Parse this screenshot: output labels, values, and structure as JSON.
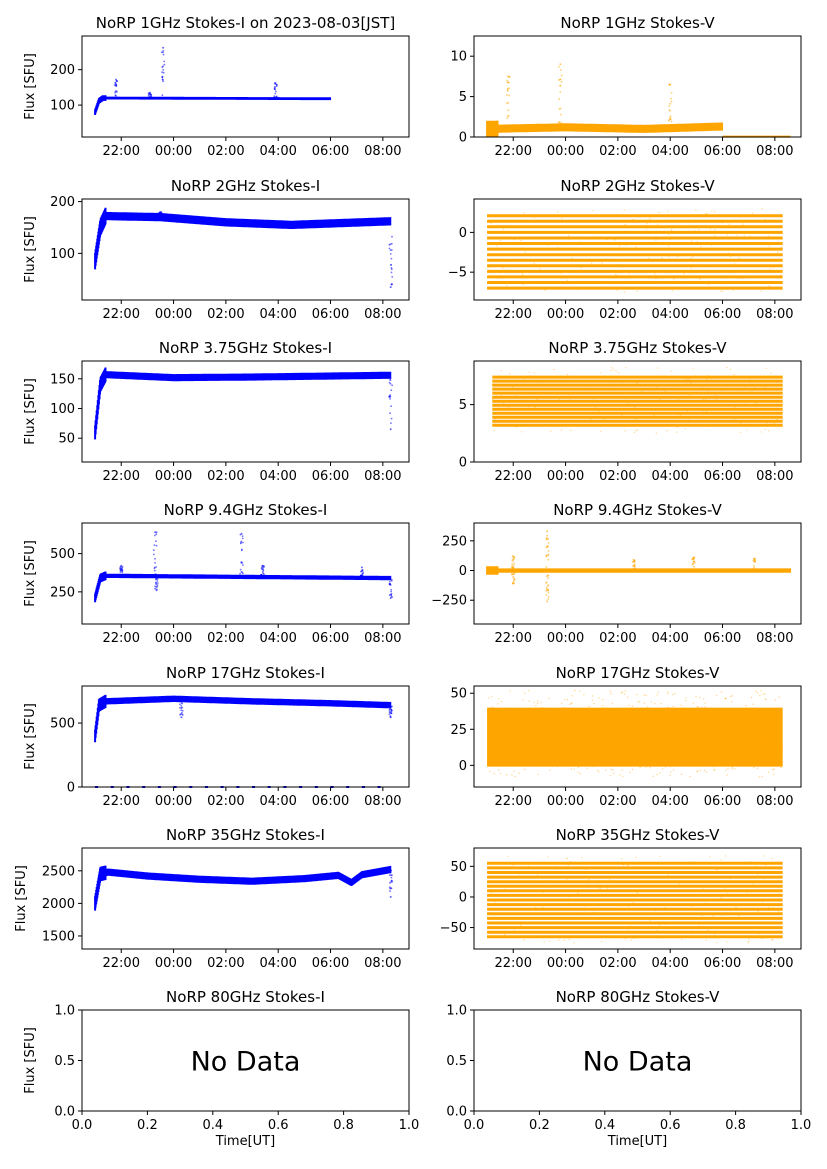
{
  "figure": {
    "xlabel": "Time[UT]",
    "ylabel": "Flux [SFU]",
    "no_data_text": "No Data"
  },
  "colors": {
    "stokes_i": "#0000ff",
    "stokes_v": "#ffa500"
  },
  "chart_data": [
    {
      "id": "i1",
      "type": "scatter",
      "title": "NoRP 1GHz Stokes-I on 2023-08-03[JST]",
      "ylabel": "Flux [SFU]",
      "color": "#0000ff",
      "xlim": [
        20.5,
        33.0
      ],
      "ylim": [
        10,
        295
      ],
      "xticks": [
        {
          "v": 22,
          "l": "22:00"
        },
        {
          "v": 24,
          "l": "00:00"
        },
        {
          "v": 26,
          "l": "02:00"
        },
        {
          "v": 28,
          "l": "04:00"
        },
        {
          "v": 30,
          "l": "06:00"
        },
        {
          "v": 32,
          "l": "08:00"
        }
      ],
      "yticks": [
        {
          "v": 100,
          "l": "100"
        },
        {
          "v": 200,
          "l": "200"
        }
      ],
      "series": {
        "start": 21.0,
        "end": 30.0,
        "ramp": [
          [
            21.0,
            80
          ],
          [
            21.15,
            112
          ],
          [
            21.3,
            120
          ],
          [
            30.0,
            118
          ]
        ],
        "band": 4,
        "spikes": [
          {
            "x": 21.8,
            "top": 172
          },
          {
            "x": 23.6,
            "top": 262
          },
          {
            "x": 27.9,
            "top": 162
          },
          {
            "x": 23.1,
            "top": 135
          }
        ]
      }
    },
    {
      "id": "v1",
      "type": "scatter",
      "title": "NoRP 1GHz Stokes-V",
      "ylabel": "",
      "color": "#ffa500",
      "xlim": [
        20.5,
        33.0
      ],
      "ylim": [
        0,
        12.5
      ],
      "xticks": [
        {
          "v": 22,
          "l": "22:00"
        },
        {
          "v": 24,
          "l": "00:00"
        },
        {
          "v": 26,
          "l": "02:00"
        },
        {
          "v": 28,
          "l": "04:00"
        },
        {
          "v": 30,
          "l": "06:00"
        },
        {
          "v": 32,
          "l": "08:00"
        }
      ],
      "yticks": [
        {
          "v": 0,
          "l": "0"
        },
        {
          "v": 5,
          "l": "5"
        },
        {
          "v": 10,
          "l": "10"
        }
      ],
      "series": {
        "start": 21.0,
        "end": 30.0,
        "ramp": [
          [
            21.0,
            1.0
          ],
          [
            24.0,
            1.2
          ],
          [
            27.0,
            1.0
          ],
          [
            30.0,
            1.3
          ]
        ],
        "band": 0.5,
        "tail": [
          30.0,
          32.6,
          0.05
        ],
        "spikes": [
          {
            "x": 21.8,
            "top": 7.5
          },
          {
            "x": 23.8,
            "top": 9.0
          },
          {
            "x": 28.0,
            "top": 6.5
          }
        ]
      }
    },
    {
      "id": "i2",
      "type": "scatter",
      "title": "NoRP 2GHz Stokes-I",
      "ylabel": "Flux [SFU]",
      "color": "#0000ff",
      "xlim": [
        20.5,
        33.0
      ],
      "ylim": [
        10,
        205
      ],
      "xticks": [
        {
          "v": 22,
          "l": "22:00"
        },
        {
          "v": 24,
          "l": "00:00"
        },
        {
          "v": 26,
          "l": "02:00"
        },
        {
          "v": 28,
          "l": "04:00"
        },
        {
          "v": 30,
          "l": "06:00"
        },
        {
          "v": 32,
          "l": "08:00"
        }
      ],
      "yticks": [
        {
          "v": 100,
          "l": "100"
        },
        {
          "v": 200,
          "l": "200"
        }
      ],
      "series": {
        "start": 21.0,
        "end": 32.3,
        "ramp": [
          [
            21.0,
            85
          ],
          [
            21.2,
            150
          ],
          [
            21.4,
            172
          ],
          [
            23.5,
            170
          ],
          [
            26.0,
            160
          ],
          [
            28.5,
            155
          ],
          [
            32.3,
            162
          ]
        ],
        "band": 8,
        "spikes": [
          {
            "x": 32.3,
            "top": 35
          },
          {
            "x": 23.5,
            "top": 180
          }
        ]
      }
    },
    {
      "id": "v2",
      "type": "stripes",
      "title": "NoRP 2GHz Stokes-V",
      "ylabel": "",
      "color": "#ffa500",
      "xlim": [
        20.5,
        33.0
      ],
      "ylim": [
        -8.5,
        4.2
      ],
      "xticks": [
        {
          "v": 22,
          "l": "22:00"
        },
        {
          "v": 24,
          "l": "00:00"
        },
        {
          "v": 26,
          "l": "02:00"
        },
        {
          "v": 28,
          "l": "04:00"
        },
        {
          "v": 30,
          "l": "06:00"
        },
        {
          "v": 32,
          "l": "08:00"
        }
      ],
      "yticks": [
        {
          "v": 0,
          "l": "0"
        },
        {
          "v": -5,
          "l": "−5"
        }
      ],
      "series": {
        "start": 21.0,
        "end": 32.3,
        "levels": [
          -7,
          2.5
        ],
        "step": 0.7,
        "scatter": [
          -7.5,
          3.0
        ]
      }
    },
    {
      "id": "i3",
      "type": "scatter",
      "title": "NoRP 3.75GHz Stokes-I",
      "ylabel": "Flux [SFU]",
      "color": "#0000ff",
      "xlim": [
        20.5,
        33.0
      ],
      "ylim": [
        10,
        180
      ],
      "xticks": [
        {
          "v": 22,
          "l": "22:00"
        },
        {
          "v": 24,
          "l": "00:00"
        },
        {
          "v": 26,
          "l": "02:00"
        },
        {
          "v": 28,
          "l": "04:00"
        },
        {
          "v": 30,
          "l": "06:00"
        },
        {
          "v": 32,
          "l": "08:00"
        }
      ],
      "yticks": [
        {
          "v": 50,
          "l": "50"
        },
        {
          "v": 100,
          "l": "100"
        },
        {
          "v": 150,
          "l": "150"
        }
      ],
      "series": {
        "start": 21.0,
        "end": 32.3,
        "ramp": [
          [
            21.0,
            60
          ],
          [
            21.2,
            140
          ],
          [
            21.4,
            157
          ],
          [
            24.0,
            152
          ],
          [
            27.0,
            153
          ],
          [
            32.3,
            156
          ]
        ],
        "band": 6,
        "spikes": [
          {
            "x": 32.3,
            "top": 65
          }
        ]
      }
    },
    {
      "id": "v3",
      "type": "stripes",
      "title": "NoRP 3.75GHz Stokes-V",
      "ylabel": "",
      "color": "#ffa500",
      "xlim": [
        20.5,
        33.0
      ],
      "ylim": [
        0,
        8.8
      ],
      "xticks": [
        {
          "v": 22,
          "l": "22:00"
        },
        {
          "v": 24,
          "l": "00:00"
        },
        {
          "v": 26,
          "l": "02:00"
        },
        {
          "v": 28,
          "l": "04:00"
        },
        {
          "v": 30,
          "l": "06:00"
        },
        {
          "v": 32,
          "l": "08:00"
        }
      ],
      "yticks": [
        {
          "v": 0,
          "l": "0"
        },
        {
          "v": 5,
          "l": "5"
        }
      ],
      "series": {
        "start": 21.2,
        "end": 32.3,
        "levels": [
          3.2,
          7.6
        ],
        "step": 0.35,
        "scatter": [
          2.5,
          8.3
        ]
      }
    },
    {
      "id": "i4",
      "type": "scatter",
      "title": "NoRP 9.4GHz Stokes-I",
      "ylabel": "Flux [SFU]",
      "color": "#0000ff",
      "xlim": [
        20.5,
        33.0
      ],
      "ylim": [
        40,
        700
      ],
      "xticks": [
        {
          "v": 22,
          "l": "22:00"
        },
        {
          "v": 24,
          "l": "00:00"
        },
        {
          "v": 26,
          "l": "02:00"
        },
        {
          "v": 28,
          "l": "04:00"
        },
        {
          "v": 30,
          "l": "06:00"
        },
        {
          "v": 32,
          "l": "08:00"
        }
      ],
      "yticks": [
        {
          "v": 250,
          "l": "250"
        },
        {
          "v": 500,
          "l": "500"
        }
      ],
      "series": {
        "start": 21.0,
        "end": 32.3,
        "ramp": [
          [
            21.0,
            210
          ],
          [
            21.2,
            340
          ],
          [
            21.4,
            355
          ],
          [
            32.3,
            340
          ]
        ],
        "band": 14,
        "spikes": [
          {
            "x": 22.0,
            "top": 420
          },
          {
            "x": 23.3,
            "top": 640
          },
          {
            "x": 23.35,
            "top": 260
          },
          {
            "x": 26.6,
            "top": 630
          },
          {
            "x": 27.4,
            "top": 420
          },
          {
            "x": 31.2,
            "top": 410
          },
          {
            "x": 32.3,
            "top": 210
          }
        ]
      }
    },
    {
      "id": "v4",
      "type": "scatter",
      "title": "NoRP 9.4GHz Stokes-V",
      "ylabel": "",
      "color": "#ffa500",
      "xlim": [
        20.5,
        33.0
      ],
      "ylim": [
        -450,
        400
      ],
      "xticks": [
        {
          "v": 22,
          "l": "22:00"
        },
        {
          "v": 24,
          "l": "00:00"
        },
        {
          "v": 26,
          "l": "02:00"
        },
        {
          "v": 28,
          "l": "04:00"
        },
        {
          "v": 30,
          "l": "06:00"
        },
        {
          "v": 32,
          "l": "08:00"
        }
      ],
      "yticks": [
        {
          "v": 250,
          "l": "250"
        },
        {
          "v": 0,
          "l": "0"
        },
        {
          "v": -250,
          "l": "−250"
        }
      ],
      "series": {
        "start": 21.0,
        "end": 32.6,
        "ramp": [
          [
            21.0,
            0
          ],
          [
            32.6,
            0
          ]
        ],
        "band": 18,
        "spikes": [
          {
            "x": 22.0,
            "top": 120
          },
          {
            "x": 22.0,
            "top": -110
          },
          {
            "x": 23.3,
            "top": 330
          },
          {
            "x": 23.3,
            "top": -260
          },
          {
            "x": 26.6,
            "top": 90
          },
          {
            "x": 28.9,
            "top": 110
          },
          {
            "x": 31.2,
            "top": 100
          }
        ]
      }
    },
    {
      "id": "i5",
      "type": "scatter",
      "title": "NoRP 17GHz Stokes-I",
      "ylabel": "Flux [SFU]",
      "color": "#0000ff",
      "xlim": [
        20.5,
        33.0
      ],
      "ylim": [
        0,
        790
      ],
      "xticks": [
        {
          "v": 22,
          "l": "22:00"
        },
        {
          "v": 24,
          "l": "00:00"
        },
        {
          "v": 26,
          "l": "02:00"
        },
        {
          "v": 28,
          "l": "04:00"
        },
        {
          "v": 30,
          "l": "06:00"
        },
        {
          "v": 32,
          "l": "08:00"
        }
      ],
      "yticks": [
        {
          "v": 0,
          "l": "0"
        },
        {
          "v": 500,
          "l": "500"
        }
      ],
      "series": {
        "start": 21.0,
        "end": 32.3,
        "ramp": [
          [
            21.0,
            400
          ],
          [
            21.15,
            640
          ],
          [
            21.4,
            670
          ],
          [
            24.0,
            690
          ],
          [
            27.0,
            670
          ],
          [
            30.0,
            655
          ],
          [
            32.3,
            640
          ]
        ],
        "band": 25,
        "spikes": [
          {
            "x": 32.3,
            "top": 545
          },
          {
            "x": 24.3,
            "top": 545
          }
        ],
        "floor": 0
      }
    },
    {
      "id": "v5",
      "type": "band",
      "title": "NoRP 17GHz Stokes-V",
      "ylabel": "",
      "color": "#ffa500",
      "xlim": [
        20.5,
        33.0
      ],
      "ylim": [
        -15,
        55
      ],
      "xticks": [
        {
          "v": 22,
          "l": "22:00"
        },
        {
          "v": 24,
          "l": "00:00"
        },
        {
          "v": 26,
          "l": "02:00"
        },
        {
          "v": 28,
          "l": "04:00"
        },
        {
          "v": 30,
          "l": "06:00"
        },
        {
          "v": 32,
          "l": "08:00"
        }
      ],
      "yticks": [
        {
          "v": 0,
          "l": "0"
        },
        {
          "v": 25,
          "l": "25"
        },
        {
          "v": 50,
          "l": "50"
        }
      ],
      "series": {
        "start": 21.0,
        "end": 32.3,
        "lo": 0,
        "hi": 40,
        "scatter": [
          -8,
          52
        ],
        "line": 0
      }
    },
    {
      "id": "i6",
      "type": "scatter",
      "title": "NoRP 35GHz Stokes-I",
      "ylabel": "Flux [SFU]",
      "color": "#0000ff",
      "xlim": [
        20.5,
        33.0
      ],
      "ylim": [
        1300,
        2850
      ],
      "xticks": [
        {
          "v": 22,
          "l": "22:00"
        },
        {
          "v": 24,
          "l": "00:00"
        },
        {
          "v": 26,
          "l": "02:00"
        },
        {
          "v": 28,
          "l": "04:00"
        },
        {
          "v": 30,
          "l": "06:00"
        },
        {
          "v": 32,
          "l": "08:00"
        }
      ],
      "yticks": [
        {
          "v": 1500,
          "l": "1500"
        },
        {
          "v": 2000,
          "l": "2000"
        },
        {
          "v": 2500,
          "l": "2500"
        }
      ],
      "series": {
        "start": 21.0,
        "end": 32.3,
        "ramp": [
          [
            21.0,
            2000
          ],
          [
            21.2,
            2450
          ],
          [
            21.5,
            2480
          ],
          [
            23.0,
            2420
          ],
          [
            25.0,
            2370
          ],
          [
            27.0,
            2340
          ],
          [
            29.0,
            2380
          ],
          [
            30.3,
            2430
          ],
          [
            30.8,
            2320
          ],
          [
            31.2,
            2440
          ],
          [
            32.3,
            2520
          ]
        ],
        "band": 55,
        "spikes": [
          {
            "x": 32.3,
            "top": 2100
          }
        ]
      }
    },
    {
      "id": "v6",
      "type": "stripes",
      "title": "NoRP 35GHz Stokes-V",
      "ylabel": "",
      "color": "#ffa500",
      "xlim": [
        20.5,
        33.0
      ],
      "ylim": [
        -85,
        80
      ],
      "xticks": [
        {
          "v": 22,
          "l": "22:00"
        },
        {
          "v": 24,
          "l": "00:00"
        },
        {
          "v": 26,
          "l": "02:00"
        },
        {
          "v": 28,
          "l": "04:00"
        },
        {
          "v": 30,
          "l": "06:00"
        },
        {
          "v": 32,
          "l": "08:00"
        }
      ],
      "yticks": [
        {
          "v": 50,
          "l": "50"
        },
        {
          "v": 0,
          "l": "0"
        },
        {
          "v": -50,
          "l": "−50"
        }
      ],
      "series": {
        "start": 21.0,
        "end": 32.3,
        "levels": [
          -65,
          60
        ],
        "step": 7.5,
        "scatter": [
          -75,
          70
        ]
      }
    },
    {
      "id": "i7",
      "type": "empty",
      "title": "NoRP 80GHz Stokes-I",
      "ylabel": "Flux [SFU]",
      "xlabel": "Time[UT]",
      "xlim": [
        0,
        1
      ],
      "ylim": [
        0,
        1
      ],
      "xticks": [
        {
          "v": 0,
          "l": "0.0"
        },
        {
          "v": 0.2,
          "l": "0.2"
        },
        {
          "v": 0.4,
          "l": "0.4"
        },
        {
          "v": 0.6,
          "l": "0.6"
        },
        {
          "v": 0.8,
          "l": "0.8"
        },
        {
          "v": 1,
          "l": "1.0"
        }
      ],
      "yticks": [
        {
          "v": 0,
          "l": "0.0"
        },
        {
          "v": 0.5,
          "l": "0.5"
        },
        {
          "v": 1,
          "l": "1.0"
        }
      ],
      "annotation": "No Data"
    },
    {
      "id": "v7",
      "type": "empty",
      "title": "NoRP 80GHz Stokes-V",
      "ylabel": "",
      "xlabel": "Time[UT]",
      "xlim": [
        0,
        1
      ],
      "ylim": [
        0,
        1
      ],
      "xticks": [
        {
          "v": 0,
          "l": "0.0"
        },
        {
          "v": 0.2,
          "l": "0.2"
        },
        {
          "v": 0.4,
          "l": "0.4"
        },
        {
          "v": 0.6,
          "l": "0.6"
        },
        {
          "v": 0.8,
          "l": "0.8"
        },
        {
          "v": 1,
          "l": "1.0"
        }
      ],
      "yticks": [
        {
          "v": 0,
          "l": "0.0"
        },
        {
          "v": 0.5,
          "l": "0.5"
        },
        {
          "v": 1,
          "l": "1.0"
        }
      ],
      "annotation": "No Data"
    }
  ]
}
